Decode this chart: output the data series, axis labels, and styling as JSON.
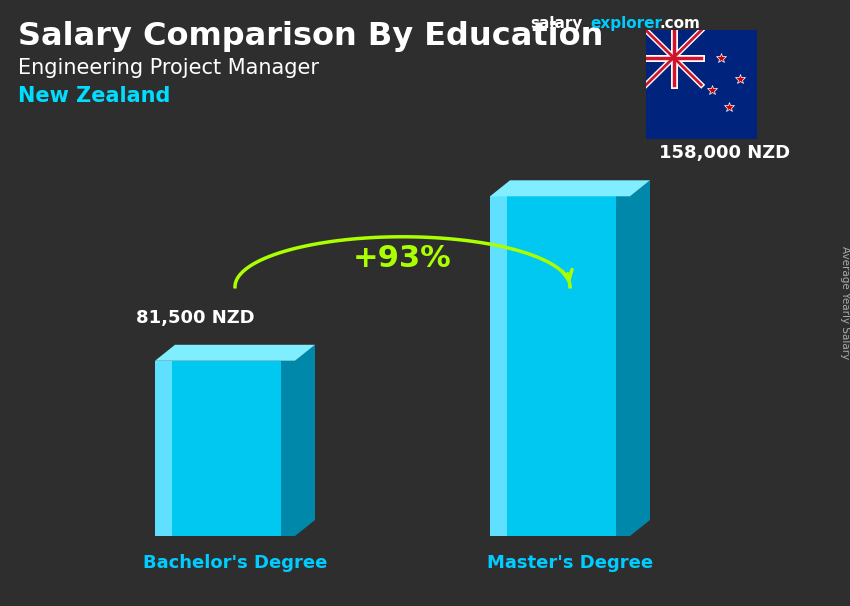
{
  "title_main": "Salary Comparison By Education",
  "subtitle1": "Engineering Project Manager",
  "subtitle2": "New Zealand",
  "categories": [
    "Bachelor's Degree",
    "Master's Degree"
  ],
  "values": [
    81500,
    158000
  ],
  "value_labels": [
    "81,500 NZD",
    "158,000 NZD"
  ],
  "pct_change": "+93%",
  "bar_color_face": "#00C8F0",
  "bar_color_left": "#60E0FF",
  "bar_color_right": "#0088AA",
  "bar_color_top": "#80EEFF",
  "background_color": "#3a3a3a",
  "title_color": "#FFFFFF",
  "subtitle1_color": "#FFFFFF",
  "subtitle2_color": "#00DDFF",
  "category_color": "#00CCFF",
  "value_label_color": "#FFFFFF",
  "pct_color": "#AAFF00",
  "arrow_color": "#AAFF00",
  "salary_color": "#FFFFFF",
  "explorer_color": "#00CCFF",
  "com_color": "#FFFFFF",
  "side_label": "Average Yearly Salary",
  "ylim": [
    0,
    200000
  ],
  "fig_width": 8.5,
  "fig_height": 6.06,
  "dpi": 100
}
